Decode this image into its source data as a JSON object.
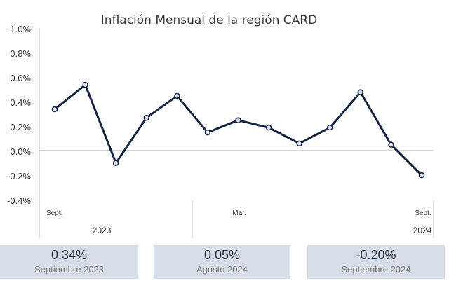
{
  "chart_data": {
    "type": "line",
    "title": "Inflación Mensual de la región CARD",
    "xlabel": "",
    "ylabel": "",
    "ylim": [
      -0.4,
      1.0
    ],
    "yticks": [
      "1.0%",
      "0.8%",
      "0.6%",
      "0.4%",
      "0.2%",
      "0.0%",
      "-0.2%",
      "-0.4%"
    ],
    "ytick_values": [
      1.0,
      0.8,
      0.6,
      0.4,
      0.2,
      0.0,
      -0.2,
      -0.4
    ],
    "x": [
      "2023-09",
      "2023-10",
      "2023-11",
      "2023-12",
      "2024-01",
      "2024-02",
      "2024-03",
      "2024-04",
      "2024-05",
      "2024-06",
      "2024-07",
      "2024-08",
      "2024-09"
    ],
    "x_tick_labels": [
      {
        "index": 0,
        "label": "Sept."
      },
      {
        "index": 6,
        "label": "Mar."
      },
      {
        "index": 12,
        "label": "Sept."
      }
    ],
    "year_labels": [
      {
        "label": "2023",
        "start_index": 0,
        "end_index": 4
      },
      {
        "label": "2024",
        "start_index": 4,
        "end_index": 12
      }
    ],
    "series": [
      {
        "values": [
          0.34,
          0.54,
          -0.1,
          0.27,
          0.45,
          0.15,
          0.25,
          0.19,
          0.06,
          0.19,
          0.48,
          0.05,
          -0.2
        ]
      }
    ],
    "grid": false,
    "legend": "none",
    "colors": {
      "line": "#13233f",
      "marker_fill": "#dfe6f1",
      "zero_line": "#a6a6a6",
      "axis": "#bdbdbd"
    }
  },
  "summary_cards": [
    {
      "value": "0.34%",
      "label": "Septiembre 2023"
    },
    {
      "value": "0.05%",
      "label": "Agosto 2024"
    },
    {
      "value": "-0.20%",
      "label": "Septiembre 2024"
    }
  ],
  "colors": {
    "card_bg": "#d7dde6"
  }
}
